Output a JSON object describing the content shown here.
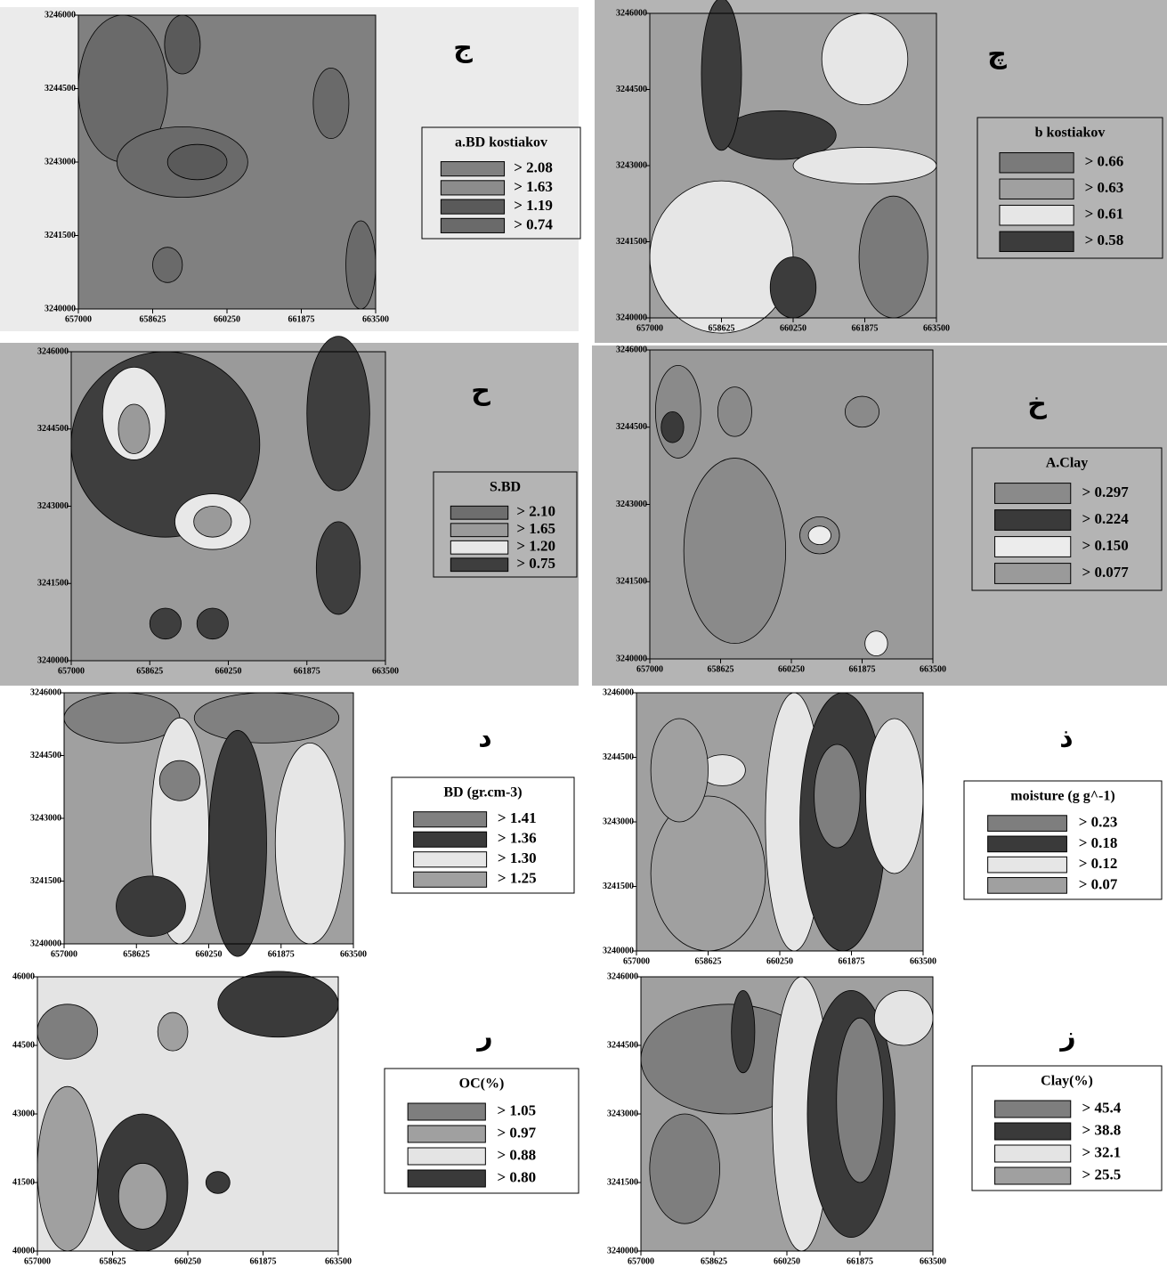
{
  "chart_data": [
    {
      "type": "contour",
      "title": "ج",
      "legend_title": "a.BD kostiakov",
      "values": [
        2.08,
        1.63,
        1.19,
        0.74
      ],
      "value_labels": [
        "> 2.08",
        "> 1.63",
        "> 1.19",
        "> 0.74"
      ],
      "colors": [
        "#808080",
        "#8c8c8c",
        "#5a5a5a",
        "#6a6a6a"
      ],
      "background": "#ebebeb",
      "xlim": [
        657000,
        663500
      ],
      "ylim": [
        3240000,
        3246000
      ],
      "xticks": [
        657000,
        658625,
        660250,
        661875,
        663500
      ],
      "yticks": [
        3240000,
        3241500,
        3243000,
        3244500,
        3246000
      ]
    },
    {
      "type": "contour",
      "title": "چ",
      "legend_title": "b kostiakov",
      "values": [
        0.66,
        0.63,
        0.61,
        0.58
      ],
      "value_labels": [
        "> 0.66",
        "> 0.63",
        "> 0.61",
        "> 0.58"
      ],
      "colors": [
        "#7a7a7a",
        "#a0a0a0",
        "#e6e6e6",
        "#3c3c3c"
      ],
      "background": "#b4b4b4",
      "xlim": [
        657000,
        663500
      ],
      "ylim": [
        3240000,
        3246000
      ],
      "xticks": [
        657000,
        658625,
        660250,
        661875,
        663500
      ],
      "yticks": [
        3240000,
        3241500,
        3243000,
        3244500,
        3246000
      ]
    },
    {
      "type": "contour",
      "title": "ح",
      "legend_title": "S.BD",
      "values": [
        2.1,
        1.65,
        1.2,
        0.75
      ],
      "value_labels": [
        "> 2.10",
        "> 1.65",
        "> 1.20",
        "> 0.75"
      ],
      "colors": [
        "#6e6e6e",
        "#9a9a9a",
        "#e8e8e8",
        "#3e3e3e"
      ],
      "background": "#b4b4b4",
      "xlim": [
        657000,
        663500
      ],
      "ylim": [
        3240000,
        3246000
      ],
      "xticks": [
        657000,
        658625,
        660250,
        661875,
        663500
      ],
      "yticks": [
        3240000,
        3241500,
        3243000,
        3244500,
        3246000
      ]
    },
    {
      "type": "contour",
      "title": "خ",
      "legend_title": "A.Clay",
      "values": [
        0.297,
        0.224,
        0.15,
        0.077
      ],
      "value_labels": [
        "> 0.297",
        "> 0.224",
        "> 0.150",
        "> 0.077"
      ],
      "colors": [
        "#8a8a8a",
        "#3a3a3a",
        "#ececec",
        "#9a9a9a"
      ],
      "background": "#b4b4b4",
      "xlim": [
        657000,
        663500
      ],
      "ylim": [
        3240000,
        3246000
      ],
      "xticks": [
        657000,
        658625,
        660250,
        661875,
        663500
      ],
      "yticks": [
        3240000,
        3241500,
        3243000,
        3244500,
        3246000
      ]
    },
    {
      "type": "contour",
      "title": "د",
      "legend_title": "BD (gr.cm-3)",
      "values": [
        1.41,
        1.36,
        1.3,
        1.25
      ],
      "value_labels": [
        "> 1.41",
        "> 1.36",
        "> 1.30",
        "> 1.25"
      ],
      "colors": [
        "#808080",
        "#3a3a3a",
        "#e6e6e6",
        "#a0a0a0"
      ],
      "background": "#ffffff",
      "xlim": [
        657000,
        663500
      ],
      "ylim": [
        3240000,
        3246000
      ],
      "xticks": [
        657000,
        658625,
        660250,
        661875,
        663500
      ],
      "yticks": [
        3240000,
        3241500,
        3243000,
        3244500,
        3246000
      ]
    },
    {
      "type": "contour",
      "title": "ذ",
      "legend_title": "moisture (g g^-1)",
      "values": [
        0.23,
        0.18,
        0.12,
        0.07
      ],
      "value_labels": [
        "> 0.23",
        "> 0.18",
        "> 0.12",
        "> 0.07"
      ],
      "colors": [
        "#7e7e7e",
        "#3a3a3a",
        "#e6e6e6",
        "#a0a0a0"
      ],
      "background": "#ffffff",
      "xlim": [
        657000,
        663500
      ],
      "ylim": [
        3240000,
        3246000
      ],
      "xticks": [
        657000,
        658625,
        660250,
        661875,
        663500
      ],
      "yticks": [
        3240000,
        3241500,
        3243000,
        3244500,
        3246000
      ]
    },
    {
      "type": "contour",
      "title": "ر",
      "legend_title": "OC(%)",
      "values": [
        1.05,
        0.97,
        0.88,
        0.8
      ],
      "value_labels": [
        "> 1.05",
        "> 0.97",
        "> 0.88",
        "> 0.80"
      ],
      "colors": [
        "#7e7e7e",
        "#a0a0a0",
        "#e4e4e4",
        "#3a3a3a"
      ],
      "background": "#ffffff",
      "xlim": [
        657000,
        663500
      ],
      "ylim": [
        40000,
        46000
      ],
      "xticks": [
        657000,
        658625,
        660250,
        661875,
        663500
      ],
      "yticks": [
        40000,
        41500,
        43000,
        44500,
        46000
      ]
    },
    {
      "type": "contour",
      "title": "ز",
      "legend_title": "Clay(%)",
      "values": [
        45.4,
        38.8,
        32.1,
        25.5
      ],
      "value_labels": [
        "> 45.4",
        "> 38.8",
        "> 32.1",
        "> 25.5"
      ],
      "colors": [
        "#7e7e7e",
        "#3a3a3a",
        "#e4e4e4",
        "#a0a0a0"
      ],
      "background": "#ffffff",
      "xlim": [
        657000,
        663500
      ],
      "ylim": [
        3240000,
        3246000
      ],
      "xticks": [
        657000,
        658625,
        660250,
        661875,
        663500
      ],
      "yticks": [
        3240000,
        3241500,
        3243000,
        3244500,
        3246000
      ]
    }
  ]
}
